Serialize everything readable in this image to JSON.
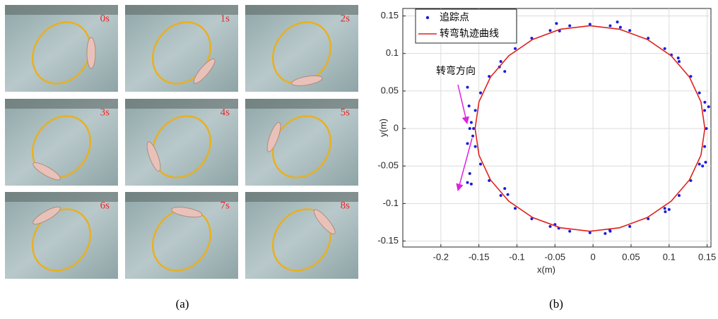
{
  "panel_a": {
    "frame_labels": [
      "0s",
      "1s",
      "2s",
      "3s",
      "4s",
      "5s",
      "6s",
      "7s",
      "8s"
    ]
  },
  "captions": [
    "(a)",
    "(b)"
  ],
  "chart_data": {
    "type": "scatter",
    "xlabel": "x(m)",
    "ylabel": "y(m)",
    "xlim": [
      -0.25,
      0.155
    ],
    "ylim": [
      -0.158,
      0.16
    ],
    "xticks": [
      -0.2,
      -0.15,
      -0.1,
      -0.05,
      0,
      0.05,
      0.1,
      0.15
    ],
    "yticks": [
      -0.15,
      -0.1,
      -0.05,
      0,
      0.05,
      0.1,
      0.15
    ],
    "grid": true,
    "legend": "upper left",
    "annotation": "转弯方向",
    "series": [
      {
        "name": "追踪点",
        "color": "#1a1adc",
        "kind": "points",
        "x": [
          0.149,
          0.1467,
          0.1398,
          0.1285,
          0.1132,
          0.0943,
          0.0725,
          0.0483,
          0.0226,
          -0.004,
          -0.0306,
          -0.0563,
          -0.0805,
          -0.1023,
          -0.1212,
          -0.1365,
          -0.1478,
          -0.1547,
          -0.157,
          -0.1547,
          -0.1478,
          -0.1365,
          -0.1212,
          -0.1023,
          -0.0805,
          -0.0563,
          -0.0306,
          -0.004,
          0.0226,
          0.0483,
          0.0725,
          0.0943,
          0.1132,
          0.1285,
          0.1398,
          0.1467,
          0.032,
          0.036,
          -0.048,
          -0.044,
          0.103,
          0.112,
          -0.123,
          -0.116,
          0.147,
          0.152,
          0.144,
          0.148,
          0.095,
          0.1,
          0.016,
          0.022,
          -0.05,
          -0.045,
          -0.116,
          -0.112,
          -0.165,
          -0.163,
          -0.162,
          -0.16,
          -0.158,
          -0.165,
          -0.162,
          -0.165,
          -0.16
        ],
        "values": [
          0,
          0.0241,
          0.0475,
          0.0695,
          0.0893,
          0.1065,
          0.1204,
          0.1306,
          0.1369,
          0.139,
          0.1369,
          0.1306,
          0.1204,
          0.1065,
          0.0893,
          0.0695,
          0.0475,
          0.0241,
          0,
          -0.0241,
          -0.0475,
          -0.0695,
          -0.0893,
          -0.1065,
          -0.1204,
          -0.1306,
          -0.1369,
          -0.139,
          -0.1369,
          -0.1306,
          -0.1204,
          -0.1065,
          -0.0893,
          -0.0695,
          -0.0475,
          -0.0241,
          0.142,
          0.135,
          0.14,
          0.13,
          0.098,
          0.094,
          0.082,
          0.076,
          0.035,
          0.029,
          -0.05,
          -0.045,
          -0.111,
          -0.108,
          -0.14,
          -0.135,
          -0.128,
          -0.133,
          -0.08,
          -0.088,
          0.055,
          0.03,
          0.0,
          0.008,
          -0.01,
          -0.02,
          -0.06,
          -0.072,
          -0.074
        ]
      },
      {
        "name": "转弯轨迹曲线",
        "color": "#e0201c",
        "kind": "line",
        "x": [
          0.147,
          0.1419,
          0.1268,
          0.1028,
          0.0715,
          0.0351,
          -0.004,
          -0.0431,
          -0.0795,
          -0.1108,
          -0.1348,
          -0.1499,
          -0.155,
          -0.1499,
          -0.1348,
          -0.1108,
          -0.0795,
          -0.0431,
          -0.004,
          0.0351,
          0.0715,
          0.1028,
          0.1268,
          0.1419,
          0.147
        ],
        "values": [
          0,
          0.0355,
          0.0685,
          0.0969,
          0.1186,
          0.1323,
          0.137,
          0.1323,
          0.1186,
          0.0969,
          0.0685,
          0.0355,
          0,
          -0.0355,
          -0.0685,
          -0.0969,
          -0.1186,
          -0.1323,
          -0.137,
          -0.1323,
          -0.1186,
          -0.0969,
          -0.0685,
          -0.0355,
          0
        ]
      }
    ]
  }
}
